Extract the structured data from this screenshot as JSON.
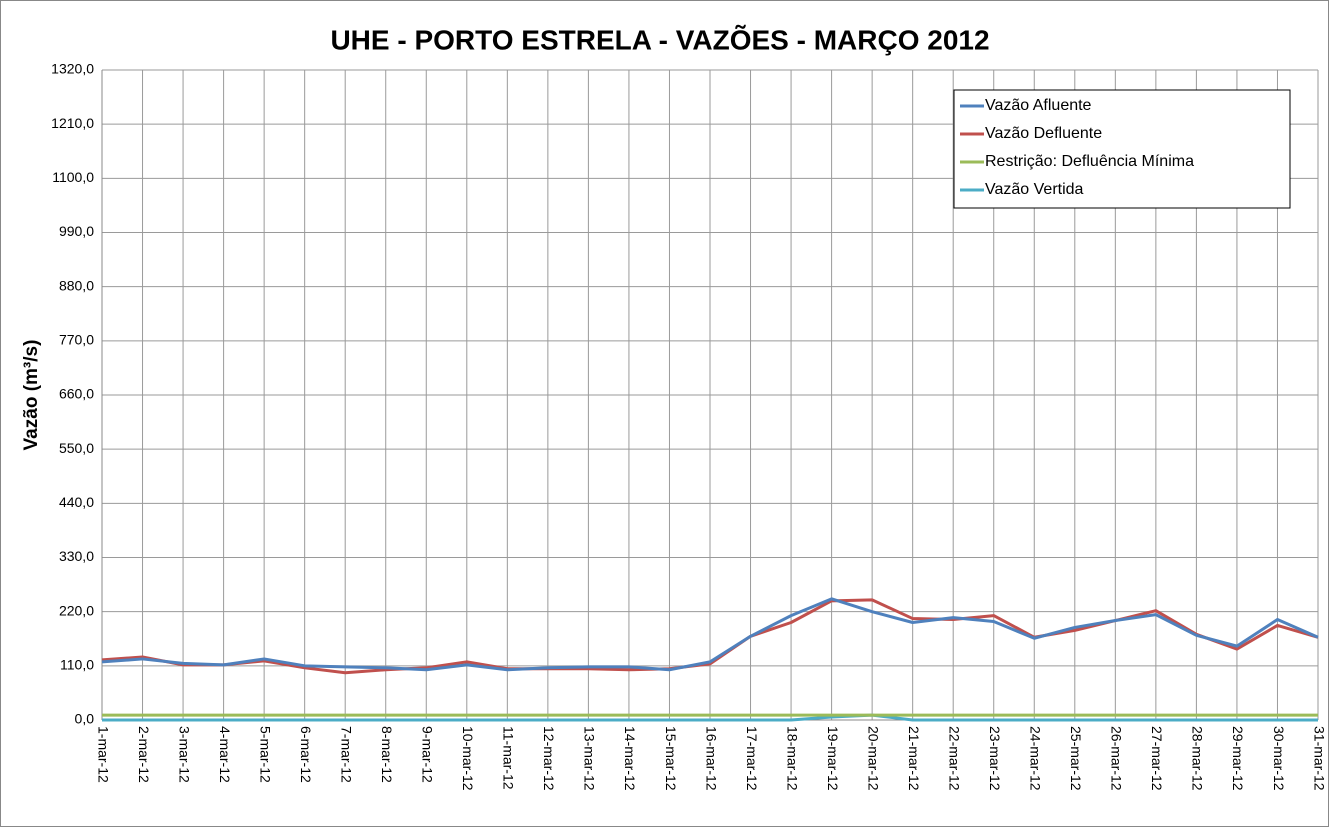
{
  "chart_data": {
    "type": "line",
    "title": "UHE - PORTO ESTRELA - VAZÕES - MARÇO 2012",
    "y_label": "Vazão (m³/s)",
    "categories": [
      "1-mar-12",
      "2-mar-12",
      "3-mar-12",
      "4-mar-12",
      "5-mar-12",
      "6-mar-12",
      "7-mar-12",
      "8-mar-12",
      "9-mar-12",
      "10-mar-12",
      "11-mar-12",
      "12-mar-12",
      "13-mar-12",
      "14-mar-12",
      "15-mar-12",
      "16-mar-12",
      "17-mar-12",
      "18-mar-12",
      "19-mar-12",
      "20-mar-12",
      "21-mar-12",
      "22-mar-12",
      "23-mar-12",
      "24-mar-12",
      "25-mar-12",
      "26-mar-12",
      "27-mar-12",
      "28-mar-12",
      "29-mar-12",
      "30-mar-12",
      "31-mar-12"
    ],
    "series": [
      {
        "name": "Vazão Afluente",
        "color": "#4f81bd",
        "values": [
          118,
          124,
          115,
          112,
          124,
          110,
          108,
          106,
          102,
          112,
          102,
          106,
          108,
          108,
          102,
          118,
          170,
          212,
          246,
          220,
          198,
          208,
          200,
          166,
          188,
          202,
          214,
          172,
          150,
          204,
          168
        ]
      },
      {
        "name": "Vazão Defluente",
        "color": "#c0504d",
        "values": [
          122,
          128,
          112,
          112,
          120,
          106,
          96,
          102,
          106,
          118,
          104,
          104,
          104,
          102,
          104,
          114,
          170,
          198,
          242,
          244,
          206,
          204,
          212,
          168,
          182,
          202,
          222,
          174,
          144,
          192,
          168
        ]
      },
      {
        "name": "Restrição: Defluência Mínima",
        "color": "#9bbb59",
        "values": [
          10,
          10,
          10,
          10,
          10,
          10,
          10,
          10,
          10,
          10,
          10,
          10,
          10,
          10,
          10,
          10,
          10,
          10,
          10,
          10,
          10,
          10,
          10,
          10,
          10,
          10,
          10,
          10,
          10,
          10,
          10
        ]
      },
      {
        "name": "Vazão Vertida",
        "color": "#4bacc6",
        "values": [
          0,
          0,
          0,
          0,
          0,
          0,
          0,
          0,
          0,
          0,
          0,
          0,
          0,
          0,
          0,
          0,
          0,
          0,
          6,
          10,
          0,
          0,
          0,
          0,
          0,
          0,
          0,
          0,
          0,
          0,
          0
        ]
      }
    ],
    "ylim": [
      0,
      1320
    ],
    "yticks": [
      {
        "value": 0,
        "label": "0,0"
      },
      {
        "value": 110,
        "label": "110,0"
      },
      {
        "value": 220,
        "label": "220,0"
      },
      {
        "value": 330,
        "label": "330,0"
      },
      {
        "value": 440,
        "label": "440,0"
      },
      {
        "value": 550,
        "label": "550,0"
      },
      {
        "value": 660,
        "label": "660,0"
      },
      {
        "value": 770,
        "label": "770,0"
      },
      {
        "value": 880,
        "label": "880,0"
      },
      {
        "value": 990,
        "label": "990,0"
      },
      {
        "value": 1100,
        "label": "1100,0"
      },
      {
        "value": 1210,
        "label": "1210,0"
      },
      {
        "value": 1320,
        "label": "1320,0"
      }
    ],
    "grid": true,
    "legend": "top-right"
  }
}
